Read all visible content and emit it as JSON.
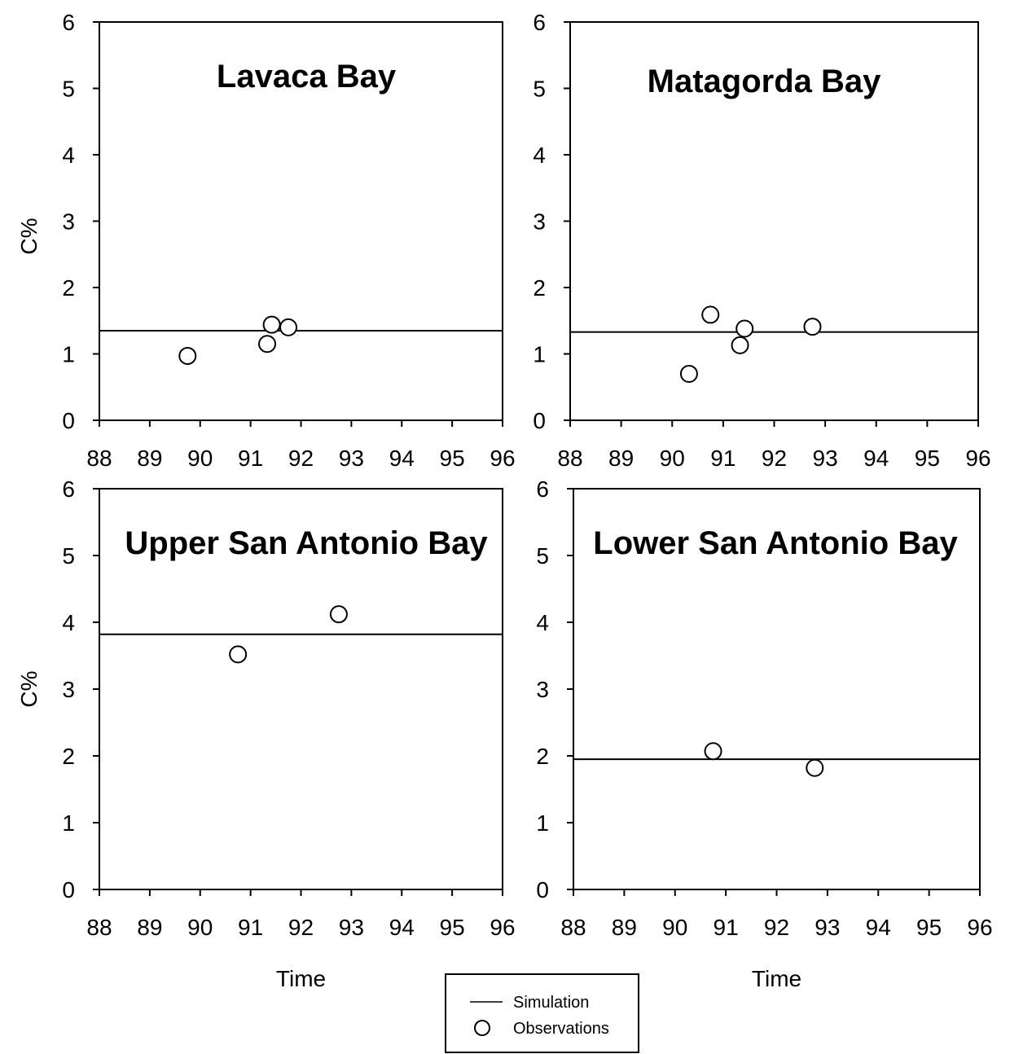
{
  "chart_data": [
    {
      "type": "scatter",
      "title": "Lavaca Bay",
      "xlabel": "",
      "ylabel": "C%",
      "xlim": [
        88,
        96
      ],
      "ylim": [
        0,
        6
      ],
      "x_ticks": [
        "88",
        "89",
        "90",
        "91",
        "92",
        "93",
        "94",
        "95",
        "96"
      ],
      "y_ticks": [
        "0",
        "1",
        "2",
        "3",
        "4",
        "5",
        "6"
      ],
      "simulation": 1.35,
      "observations": [
        {
          "x": 89.75,
          "y": 0.97
        },
        {
          "x": 91.33,
          "y": 1.15
        },
        {
          "x": 91.42,
          "y": 1.44
        },
        {
          "x": 91.75,
          "y": 1.4
        }
      ]
    },
    {
      "type": "scatter",
      "title": "Matagorda Bay",
      "xlabel": "",
      "ylabel": "",
      "xlim": [
        88,
        96
      ],
      "ylim": [
        0,
        6
      ],
      "x_ticks": [
        "88",
        "89",
        "90",
        "91",
        "92",
        "93",
        "94",
        "95",
        "96"
      ],
      "y_ticks": [
        "0",
        "1",
        "2",
        "3",
        "4",
        "5",
        "6"
      ],
      "simulation": 1.33,
      "observations": [
        {
          "x": 90.33,
          "y": 0.7
        },
        {
          "x": 90.75,
          "y": 1.59
        },
        {
          "x": 91.33,
          "y": 1.13
        },
        {
          "x": 91.42,
          "y": 1.38
        },
        {
          "x": 92.75,
          "y": 1.41
        }
      ]
    },
    {
      "type": "scatter",
      "title": "Upper San Antonio Bay",
      "xlabel": "Time",
      "ylabel": "C%",
      "xlim": [
        88,
        96
      ],
      "ylim": [
        0,
        6
      ],
      "x_ticks": [
        "88",
        "89",
        "90",
        "91",
        "92",
        "93",
        "94",
        "95",
        "96"
      ],
      "y_ticks": [
        "0",
        "1",
        "2",
        "3",
        "4",
        "5",
        "6"
      ],
      "simulation": 3.82,
      "observations": [
        {
          "x": 90.75,
          "y": 3.52
        },
        {
          "x": 92.75,
          "y": 4.12
        }
      ]
    },
    {
      "type": "scatter",
      "title": "Lower San Antonio Bay",
      "xlabel": "Time",
      "ylabel": "",
      "xlim": [
        88,
        96
      ],
      "ylim": [
        0,
        6
      ],
      "x_ticks": [
        "88",
        "89",
        "90",
        "91",
        "92",
        "93",
        "94",
        "95",
        "96"
      ],
      "y_ticks": [
        "0",
        "1",
        "2",
        "3",
        "4",
        "5",
        "6"
      ],
      "simulation": 1.95,
      "observations": [
        {
          "x": 90.75,
          "y": 2.07
        },
        {
          "x": 92.75,
          "y": 1.82
        }
      ]
    }
  ],
  "legend": {
    "simulation_label": "Simulation",
    "observations_label": "Observations",
    "position": "bottom-center"
  }
}
